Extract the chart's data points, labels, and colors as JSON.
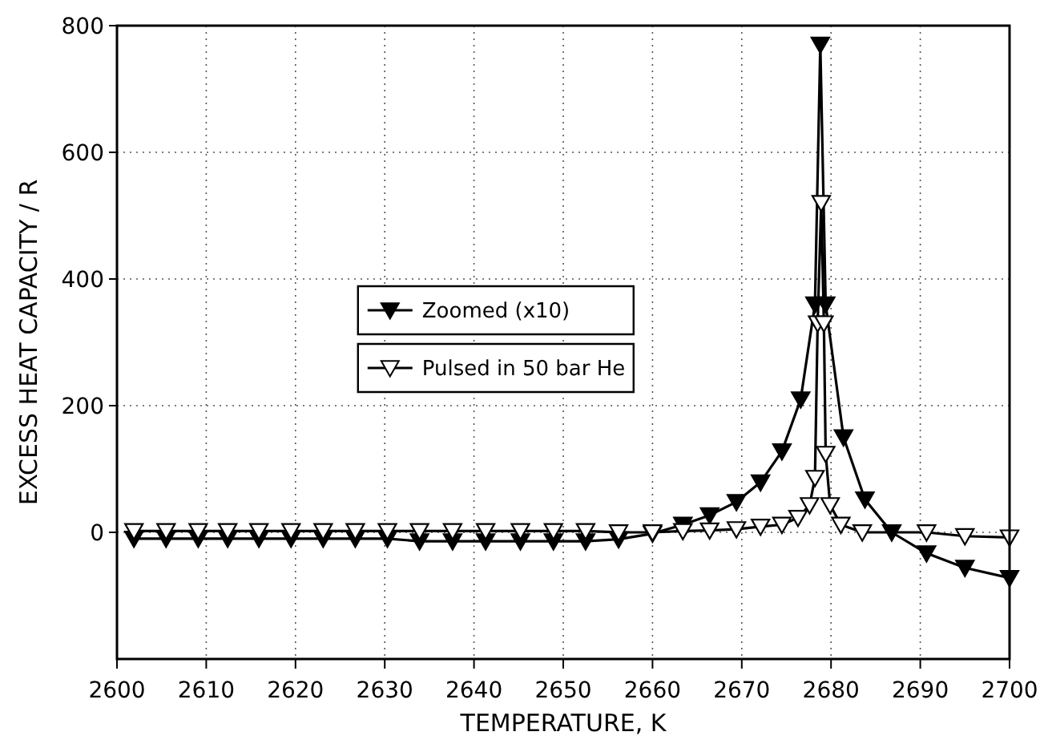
{
  "chart_data": {
    "type": "line",
    "xlabel": "TEMPERATURE, K",
    "ylabel": "EXCESS HEAT CAPACITY / R",
    "xlim": [
      2600,
      2700
    ],
    "xticks": [
      2600,
      2610,
      2620,
      2630,
      2640,
      2650,
      2660,
      2670,
      2680,
      2690,
      2700
    ],
    "ylim": [
      -200,
      800
    ],
    "yticks": [
      0,
      200,
      400,
      600,
      800
    ],
    "grid": true,
    "legend": "left",
    "marker": "triangle",
    "line_style": "solid",
    "series": [
      {
        "name": "Zoomed (x10)",
        "color": "#000000",
        "x": [
          2601.9,
          2605.5,
          2609.1,
          2612.4,
          2615.9,
          2619.5,
          2623.1,
          2626.7,
          2630.3,
          2633.9,
          2637.6,
          2641.3,
          2645.2,
          2648.9,
          2652.5,
          2656.2,
          2660,
          2663.4,
          2666.4,
          2669.4,
          2672.1,
          2674.5,
          2676.6,
          2678.2,
          2678.8,
          2679.4,
          2681.4,
          2683.8,
          2686.8,
          2690.7,
          2695,
          2700
        ],
        "values": [
          -10,
          -10,
          -10,
          -10,
          -10,
          -10,
          -10,
          -10,
          -10,
          -14,
          -14,
          -14,
          -14,
          -14,
          -14,
          -11,
          -2,
          12,
          27,
          48,
          79,
          128,
          210,
          360,
          770,
          360,
          150,
          52,
          0,
          -33,
          -56,
          -72
        ]
      },
      {
        "name": "Pulsed in 50 bar He",
        "color": "#000000",
        "x": [
          2601.9,
          2605.5,
          2609.1,
          2612.4,
          2615.9,
          2619.5,
          2623.1,
          2626.7,
          2630.3,
          2633.9,
          2637.6,
          2641.3,
          2645.2,
          2648.9,
          2652.5,
          2656.2,
          2660,
          2663.4,
          2666.4,
          2669.4,
          2672.1,
          2674.5,
          2676.3,
          2677.6,
          2678.2,
          2678.5,
          2678.9,
          2679.2,
          2679.4,
          2679.9,
          2681.1,
          2683.5,
          2690.7,
          2695,
          2700
        ],
        "values": [
          2,
          2,
          2,
          2,
          2,
          2,
          2,
          2,
          2,
          2,
          2,
          2,
          2,
          2,
          2,
          0,
          0,
          2,
          3,
          5,
          9,
          12,
          23,
          43,
          86,
          330,
          520,
          330,
          124,
          43,
          12,
          0,
          0,
          -6,
          -8
        ]
      }
    ]
  }
}
